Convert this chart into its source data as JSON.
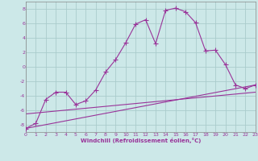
{
  "xlabel": "Windchill (Refroidissement éolien,°C)",
  "background_color": "#cce8e8",
  "grid_color": "#aacccc",
  "line_color": "#993399",
  "xlim": [
    0,
    23
  ],
  "ylim": [
    -9,
    9
  ],
  "xticks": [
    0,
    1,
    2,
    3,
    4,
    5,
    6,
    7,
    8,
    9,
    10,
    11,
    12,
    13,
    14,
    15,
    16,
    17,
    18,
    19,
    20,
    21,
    22,
    23
  ],
  "yticks": [
    -8,
    -6,
    -4,
    -2,
    0,
    2,
    4,
    6,
    8
  ],
  "line1_x": [
    0,
    1,
    2,
    3,
    4,
    5,
    6,
    7,
    8,
    9,
    10,
    11,
    12,
    13,
    14,
    15,
    16,
    17,
    18,
    19,
    20,
    21,
    22,
    23
  ],
  "line1_y": [
    -8.5,
    -7.8,
    -4.5,
    -3.5,
    -3.5,
    -5.2,
    -4.7,
    -3.2,
    -0.7,
    1.0,
    3.3,
    5.9,
    6.5,
    3.2,
    7.8,
    8.1,
    7.6,
    6.1,
    2.2,
    2.3,
    0.3,
    -2.5,
    -3.0,
    -2.5
  ],
  "line2_x": [
    0,
    23
  ],
  "line2_y": [
    -8.5,
    -2.5
  ],
  "line3_x": [
    0,
    23
  ],
  "line3_y": [
    -6.5,
    -3.5
  ],
  "marker": "+"
}
